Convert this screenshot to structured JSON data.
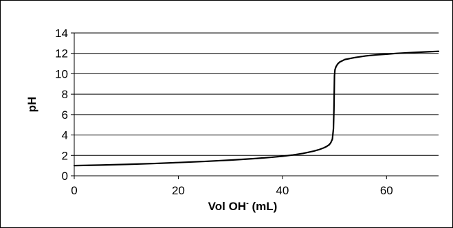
{
  "chart_data": {
    "type": "line",
    "xlabel_main": "Vol OH",
    "xlabel_sup": "-",
    "xlabel_unit": " (mL)",
    "ylabel": "pH",
    "xlim": [
      0,
      70
    ],
    "ylim": [
      0,
      14
    ],
    "xticks": [
      0,
      20,
      40,
      60
    ],
    "yticks": [
      0,
      2,
      4,
      6,
      8,
      10,
      12,
      14
    ],
    "grid": "horizontal",
    "legend": "none",
    "line_color": "#000000",
    "series": [
      {
        "x": [
          0,
          5,
          10,
          15,
          20,
          25,
          30,
          35,
          38,
          40,
          42,
          44,
          46,
          47,
          48,
          48.5,
          49,
          49.3,
          49.6,
          49.8,
          49.9,
          50,
          50.1,
          50.3,
          50.6,
          51,
          52,
          54,
          56,
          58,
          60,
          62,
          65,
          68,
          70
        ],
        "y": [
          1.0,
          1.05,
          1.12,
          1.2,
          1.3,
          1.41,
          1.54,
          1.7,
          1.82,
          1.92,
          2.04,
          2.2,
          2.42,
          2.56,
          2.75,
          2.88,
          3.05,
          3.25,
          3.6,
          4.6,
          6.5,
          9.8,
          10.4,
          10.7,
          10.95,
          11.15,
          11.4,
          11.6,
          11.75,
          11.85,
          11.92,
          12.0,
          12.08,
          12.16,
          12.2
        ]
      }
    ]
  }
}
